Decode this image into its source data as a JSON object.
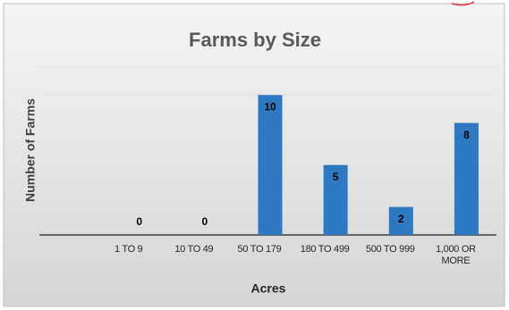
{
  "chart_data": {
    "type": "bar",
    "title": "Farms by Size",
    "x_label": "Acres",
    "y_label": "Number of Farms",
    "categories": [
      null,
      "1 TO 9",
      "10 TO 49",
      "50 TO 179",
      "180 TO 499",
      "500 TO 999",
      "1,000 OR MORE"
    ],
    "values": [
      null,
      0,
      0,
      10,
      5,
      2,
      8
    ],
    "color": "#2f78c2",
    "ylim": [
      0,
      12
    ],
    "yticks": [
      0,
      2,
      4,
      6,
      8,
      10,
      12
    ],
    "ytick_labels": false,
    "grid": true
  }
}
